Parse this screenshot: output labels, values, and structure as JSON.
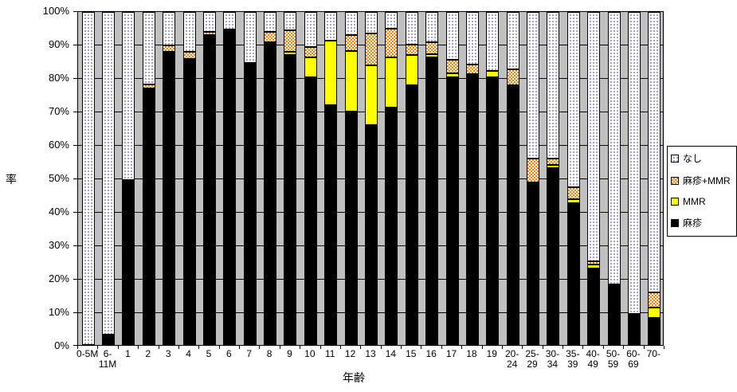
{
  "y_axis": {
    "title": "率",
    "tick_labels": [
      "100%",
      "90%",
      "80%",
      "70%",
      "60%",
      "50%",
      "40%",
      "30%",
      "20%",
      "10%",
      "0%"
    ],
    "min": 0,
    "max": 100,
    "grid": true
  },
  "x_axis": {
    "title": "年齢"
  },
  "legend": {
    "position": "right",
    "items": [
      {
        "label": "なし",
        "swatch": "dots"
      },
      {
        "label": "麻疹+MMR",
        "swatch": "check"
      },
      {
        "label": "MMR",
        "swatch": "mmr"
      },
      {
        "label": "麻疹",
        "swatch": "measles"
      }
    ]
  },
  "colors": {
    "measles": "#000000",
    "mmr": "#ffff00",
    "measles_plus_mmr": "#ff8000",
    "none_dot": "#8888cc",
    "plot_background": "#c0c0c0"
  },
  "chart_data": {
    "type": "bar",
    "stacked": true,
    "ylim": [
      0,
      100
    ],
    "title": "",
    "xlabel": "年齢",
    "ylabel": "率",
    "categories": [
      "0-5M",
      "6-11M",
      "1",
      "2",
      "3",
      "4",
      "5",
      "6",
      "7",
      "8",
      "9",
      "10",
      "11",
      "12",
      "13",
      "14",
      "15",
      "16",
      "17",
      "18",
      "19",
      "20-24",
      "25-29",
      "30-34",
      "35-39",
      "40-49",
      "50-59",
      "60-69",
      "70-"
    ],
    "category_display": [
      [
        "0-5M"
      ],
      [
        "6-",
        "11M"
      ],
      [
        "1"
      ],
      [
        "2"
      ],
      [
        "3"
      ],
      [
        "4"
      ],
      [
        "5"
      ],
      [
        "6"
      ],
      [
        "7"
      ],
      [
        "8"
      ],
      [
        "9"
      ],
      [
        "10"
      ],
      [
        "11"
      ],
      [
        "12"
      ],
      [
        "13"
      ],
      [
        "14"
      ],
      [
        "15"
      ],
      [
        "16"
      ],
      [
        "17"
      ],
      [
        "18"
      ],
      [
        "19"
      ],
      [
        "20-",
        "24"
      ],
      [
        "25-",
        "29"
      ],
      [
        "30-",
        "34"
      ],
      [
        "35-",
        "39"
      ],
      [
        "40-",
        "49"
      ],
      [
        "50-",
        "59"
      ],
      [
        "60-",
        "69"
      ],
      [
        "70-"
      ]
    ],
    "series": [
      {
        "name": "麻疹",
        "key": "measles",
        "values": [
          0,
          3.2,
          49.5,
          77.1,
          88,
          86,
          93,
          94.8,
          84.7,
          91,
          87,
          80.3,
          72,
          70,
          66,
          71.3,
          78,
          86.3,
          80.5,
          81.4,
          80.5,
          77.9,
          48.8,
          53,
          42.6,
          23,
          17.7,
          9.3,
          8.1
        ]
      },
      {
        "name": "MMR",
        "key": "mmr",
        "values": [
          0,
          0,
          0,
          0,
          0,
          0,
          0,
          0,
          0,
          0,
          1,
          6,
          19.3,
          18.3,
          18,
          15,
          9,
          1.1,
          1.2,
          0,
          1.8,
          0,
          0,
          1.1,
          1.2,
          1.1,
          0,
          0,
          3.2
        ]
      },
      {
        "name": "麻疹+MMR",
        "key": "check",
        "values": [
          0,
          0,
          0,
          1.2,
          2,
          2,
          1,
          0,
          0,
          3,
          6.5,
          3.2,
          0,
          4.7,
          9.5,
          8.7,
          3.2,
          3.6,
          4,
          2.9,
          0,
          4.8,
          7.2,
          1.9,
          3.6,
          1.1,
          0.5,
          0,
          4.4
        ]
      },
      {
        "name": "なし",
        "key": "dots",
        "values": [
          100,
          96.8,
          50.5,
          21.7,
          10,
          12,
          6,
          5.2,
          15.3,
          6,
          5.5,
          10.5,
          8.7,
          7,
          6.5,
          5,
          9.8,
          9,
          14.3,
          15.7,
          17.7,
          17.3,
          44,
          44,
          52.6,
          74.8,
          81.8,
          90.7,
          84.3
        ]
      }
    ],
    "legend_entries": [
      "なし",
      "麻疹+MMR",
      "MMR",
      "麻疹"
    ]
  }
}
